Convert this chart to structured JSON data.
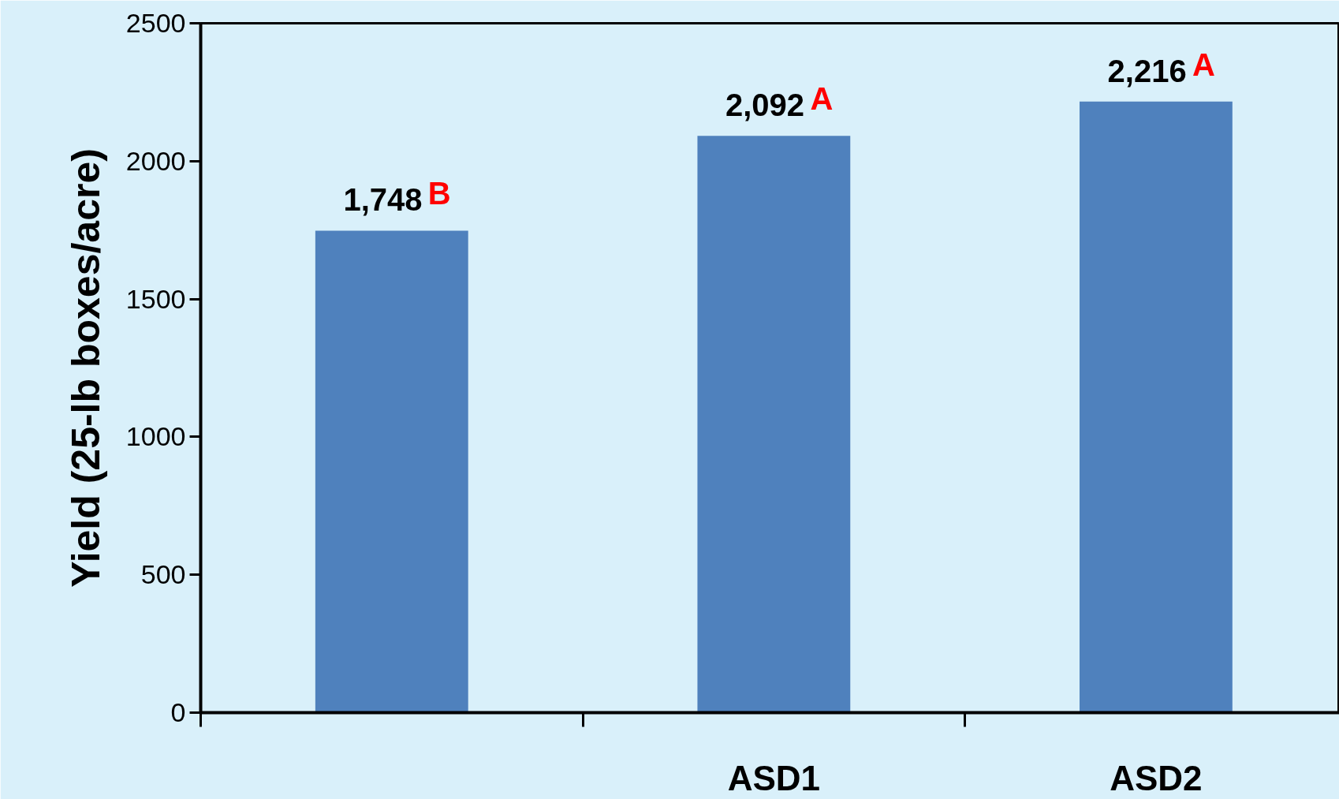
{
  "chart_data": {
    "type": "bar",
    "ylabel": "Yield (25-lb boxes/acre)",
    "categories": [
      null,
      "ASD1",
      "ASD2"
    ],
    "values": [
      1748,
      2092,
      2216
    ],
    "color": "#4f81bd",
    "value_labels": [
      "1,748",
      "2,092",
      "2,216"
    ],
    "annotations": [
      {
        "text": "B",
        "y": 1748
      },
      {
        "text": "A",
        "x": "ASD1",
        "y": 2092
      },
      {
        "text": "A",
        "x": "ASD2",
        "y": 2216
      }
    ],
    "ylim": [
      0,
      2500
    ],
    "yticks": [
      0,
      500,
      1000,
      1500,
      2000,
      2500
    ],
    "grid": false
  }
}
